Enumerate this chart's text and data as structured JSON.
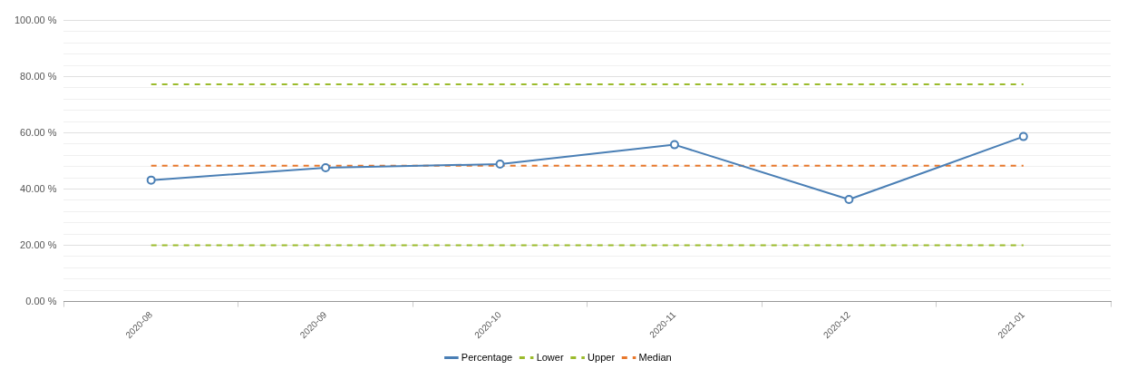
{
  "chart_data": {
    "type": "line",
    "categories": [
      "2020-08",
      "2020-09",
      "2020-10",
      "2020-11",
      "2020-12",
      "2021-01"
    ],
    "series": [
      {
        "name": "Percentage",
        "color": "#4a7fb5",
        "values": [
          43.2,
          47.6,
          48.9,
          55.8,
          36.3,
          58.7
        ],
        "marker": "circle",
        "line_style": "solid"
      },
      {
        "name": "Lower",
        "color": "#9bbb2c",
        "values": [
          20,
          20,
          20,
          20,
          20,
          20
        ],
        "marker": "none",
        "line_style": "dashed"
      },
      {
        "name": "Upper",
        "color": "#9bbb2c",
        "values": [
          77.3,
          77.3,
          77.3,
          77.3,
          77.3,
          77.3
        ],
        "marker": "none",
        "line_style": "dashed"
      },
      {
        "name": "Median",
        "color": "#e8782c",
        "values": [
          48.3,
          48.3,
          48.3,
          48.3,
          48.3,
          48.3
        ],
        "marker": "none",
        "line_style": "dashed"
      }
    ],
    "ylim": [
      0,
      100
    ],
    "yticks": [
      {
        "value": 0,
        "label": "0.00 %"
      },
      {
        "value": 4,
        "label": null
      },
      {
        "value": 8,
        "label": null
      },
      {
        "value": 12,
        "label": null
      },
      {
        "value": 16,
        "label": null
      },
      {
        "value": 20,
        "label": "20.00 %"
      },
      {
        "value": 24,
        "label": null
      },
      {
        "value": 28,
        "label": null
      },
      {
        "value": 32,
        "label": null
      },
      {
        "value": 36,
        "label": null
      },
      {
        "value": 40,
        "label": "40.00 %"
      },
      {
        "value": 44,
        "label": null
      },
      {
        "value": 48,
        "label": null
      },
      {
        "value": 52,
        "label": null
      },
      {
        "value": 56,
        "label": null
      },
      {
        "value": 60,
        "label": "60.00 %"
      },
      {
        "value": 64,
        "label": null
      },
      {
        "value": 68,
        "label": null
      },
      {
        "value": 72,
        "label": null
      },
      {
        "value": 76,
        "label": null
      },
      {
        "value": 80,
        "label": "80.00 %"
      },
      {
        "value": 84,
        "label": null
      },
      {
        "value": 88,
        "label": null
      },
      {
        "value": 92,
        "label": null
      },
      {
        "value": 96,
        "label": null
      },
      {
        "value": 100,
        "label": "100.00 %"
      }
    ],
    "grid": "y",
    "legend": "bottom"
  }
}
